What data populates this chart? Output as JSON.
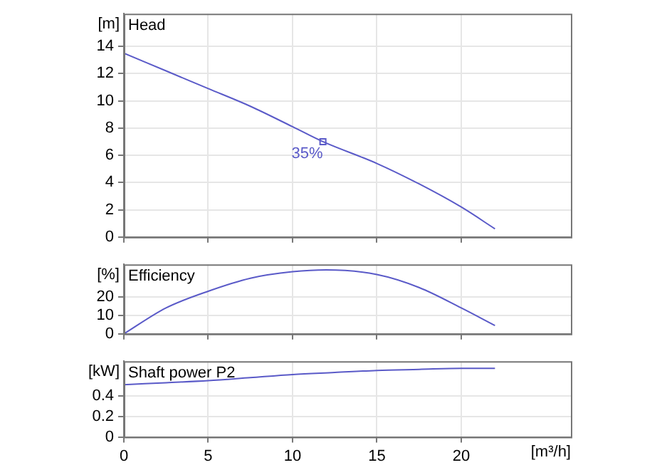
{
  "chart_data": [
    {
      "type": "line",
      "title": "Head",
      "ylabel": "[m]",
      "x": [
        0,
        2.5,
        5,
        7.5,
        10,
        11.8,
        15,
        17.5,
        20,
        22
      ],
      "values": [
        13.5,
        12.2,
        10.9,
        9.6,
        8.1,
        7.0,
        5.4,
        3.9,
        2.2,
        0.6
      ],
      "color": "#5a5ac8",
      "xlim": [
        0,
        26.5
      ],
      "xticks": [
        0,
        5,
        10,
        15,
        20
      ],
      "ylim": [
        0,
        16.4
      ],
      "yticks": [
        0,
        2,
        4,
        6,
        8,
        10,
        12,
        14
      ],
      "grid": true,
      "tick_labels": "y",
      "annotations": [
        {
          "text": "35%",
          "x": 11.8,
          "y": 7.0
        }
      ]
    },
    {
      "type": "line",
      "title": "Efficiency",
      "ylabel": "[%]",
      "x": [
        0,
        2.5,
        5,
        7.5,
        10,
        12,
        15,
        17.5,
        20,
        22
      ],
      "values": [
        0,
        14,
        23,
        30,
        33.5,
        34.5,
        32,
        25,
        14,
        4.5
      ],
      "color": "#5a5ac8",
      "xlim": [
        0,
        26.5
      ],
      "xticks": [
        0,
        5,
        10,
        15,
        20
      ],
      "ylim": [
        0,
        37.5
      ],
      "yticks": [
        0,
        10,
        20
      ],
      "grid": true,
      "tick_labels": "y"
    },
    {
      "type": "line",
      "title": "Shaft power P2",
      "ylabel": "[kW]",
      "xlabel": "[m³/h]",
      "x": [
        0,
        2.5,
        5,
        7.5,
        10,
        12.5,
        15,
        17.5,
        20,
        22
      ],
      "values": [
        0.51,
        0.53,
        0.55,
        0.58,
        0.61,
        0.63,
        0.65,
        0.66,
        0.67,
        0.67
      ],
      "color": "#5a5ac8",
      "xlim": [
        0,
        26.5
      ],
      "xticks": [
        0,
        5,
        10,
        15,
        20
      ],
      "ylim": [
        0,
        0.74
      ],
      "yticks": [
        0,
        0.2,
        0.4
      ],
      "grid": true
    }
  ]
}
